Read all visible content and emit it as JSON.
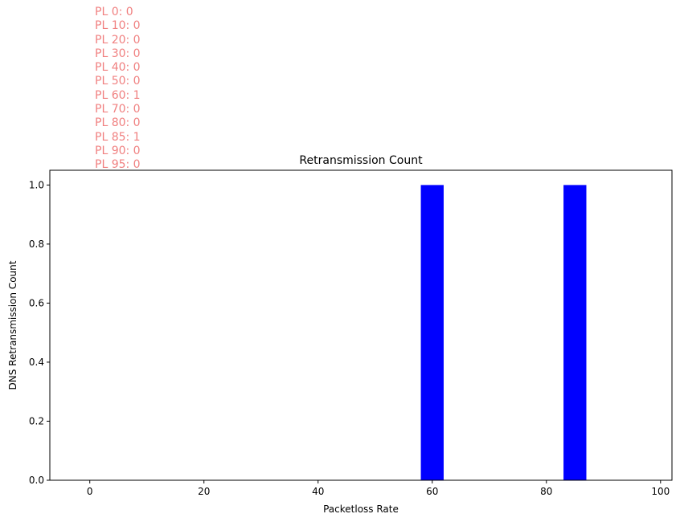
{
  "chart_data": {
    "type": "bar",
    "title": "Retransmission Count",
    "xlabel": "Packetloss Rate",
    "ylabel": "DNS Retransmission Count",
    "x": [
      0,
      10,
      20,
      30,
      40,
      50,
      60,
      70,
      80,
      85,
      90,
      95
    ],
    "values": [
      0,
      0,
      0,
      0,
      0,
      0,
      1,
      0,
      0,
      1,
      0,
      0
    ],
    "bar_width": 4,
    "bar_color": "#0000ff",
    "xlim": [
      -7,
      102
    ],
    "ylim": [
      0,
      1.05
    ],
    "xticks": [
      0,
      20,
      40,
      60,
      80,
      100
    ],
    "yticks": [
      "0.0",
      "0.2",
      "0.4",
      "0.6",
      "0.8",
      "1.0"
    ],
    "grid": false,
    "annotation_color": "#f08080",
    "annotations": [
      "PL 0: 0",
      "PL 10: 0",
      "PL 20: 0",
      "PL 30: 0",
      "PL 40: 0",
      "PL 50: 0",
      "PL 60: 1",
      "PL 70: 0",
      "PL 80: 0",
      "PL 85: 1",
      "PL 90: 0",
      "PL 95: 0"
    ]
  }
}
